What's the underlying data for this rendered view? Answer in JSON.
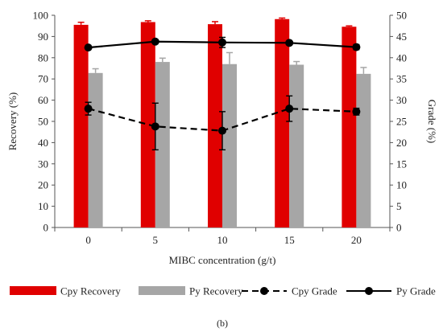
{
  "caption": "(b)",
  "chart_data": {
    "type": "bar",
    "categories": [
      "0",
      "5",
      "10",
      "15",
      "20"
    ],
    "xlabel": "MIBC concentration (g/t)",
    "ylabel": "Recovery (%)",
    "y2label": "Grade (%)",
    "ylim": [
      0,
      100
    ],
    "y2lim": [
      0,
      50
    ],
    "yticks": [
      0,
      10,
      20,
      30,
      40,
      50,
      60,
      70,
      80,
      90,
      100
    ],
    "y2ticks": [
      0,
      5,
      10,
      15,
      20,
      25,
      30,
      35,
      40,
      45,
      50
    ],
    "grid": false,
    "legend_position": "bottom",
    "series": [
      {
        "name": "Cpy Recovery",
        "kind": "bar",
        "axis": "left",
        "color": "#e00000",
        "values": [
          95.5,
          96.8,
          95.8,
          98.2,
          94.6
        ],
        "errors": [
          1.2,
          0.6,
          1.2,
          0.5,
          0.4
        ]
      },
      {
        "name": "Py Recovery",
        "kind": "bar",
        "axis": "left",
        "color": "#a6a6a6",
        "values": [
          72.8,
          78.0,
          77.0,
          76.7,
          72.4
        ],
        "errors": [
          2.0,
          1.8,
          5.4,
          1.5,
          3.0
        ]
      },
      {
        "name": "Cpy Grade",
        "kind": "line",
        "style": "dashed",
        "axis": "right",
        "color": "#000000",
        "values": [
          28.0,
          23.8,
          22.8,
          28.0,
          27.3
        ],
        "errors": [
          1.5,
          5.5,
          4.5,
          3.0,
          0.8
        ]
      },
      {
        "name": "Py Grade",
        "kind": "line",
        "style": "solid",
        "axis": "right",
        "color": "#000000",
        "values": [
          42.4,
          43.8,
          43.6,
          43.5,
          42.5
        ],
        "errors": [
          0.3,
          0.4,
          1.2,
          0.4,
          0.6
        ]
      }
    ]
  }
}
